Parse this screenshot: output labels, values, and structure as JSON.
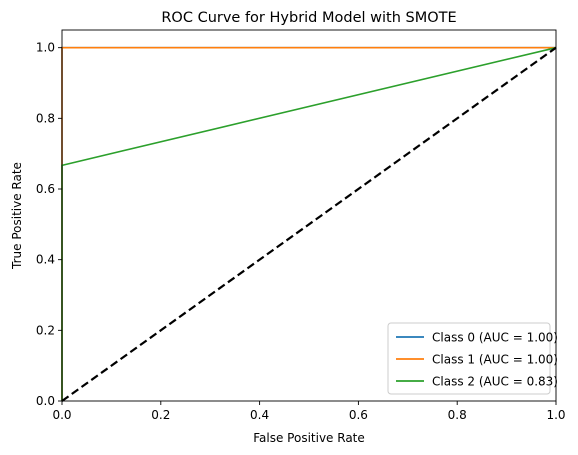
{
  "chart_data": {
    "type": "line",
    "title": "ROC Curve for Hybrid Model with SMOTE",
    "xlabel": "False Positive Rate",
    "ylabel": "True Positive Rate",
    "xlim": [
      0.0,
      1.0
    ],
    "ylim": [
      0.0,
      1.05
    ],
    "xticks": [
      0.0,
      0.2,
      0.4,
      0.6,
      0.8,
      1.0
    ],
    "yticks": [
      0.0,
      0.2,
      0.4,
      0.6,
      0.8,
      1.0
    ],
    "xtick_labels": [
      "0.0",
      "0.2",
      "0.4",
      "0.6",
      "0.8",
      "1.0"
    ],
    "ytick_labels": [
      "0.0",
      "0.2",
      "0.4",
      "0.6",
      "0.8",
      "1.0"
    ],
    "grid": false,
    "legend_position": "lower-right",
    "series": [
      {
        "name": "Class 0 (AUC = 1.00)",
        "color": "#1f77b4",
        "x": [
          0.0,
          0.0,
          1.0
        ],
        "y": [
          0.0,
          1.0,
          1.0
        ]
      },
      {
        "name": "Class 1 (AUC = 1.00)",
        "color": "#ff7f0e",
        "x": [
          0.0,
          0.0,
          1.0
        ],
        "y": [
          0.0,
          1.0,
          1.0
        ]
      },
      {
        "name": "Class 2 (AUC = 0.83)",
        "color": "#2ca02c",
        "x": [
          0.0,
          0.0,
          1.0
        ],
        "y": [
          0.0,
          0.667,
          1.0
        ]
      }
    ],
    "reference_line": {
      "x": [
        0.0,
        1.0
      ],
      "y": [
        0.0,
        1.0
      ],
      "color": "#000000",
      "style": "dashed"
    }
  }
}
